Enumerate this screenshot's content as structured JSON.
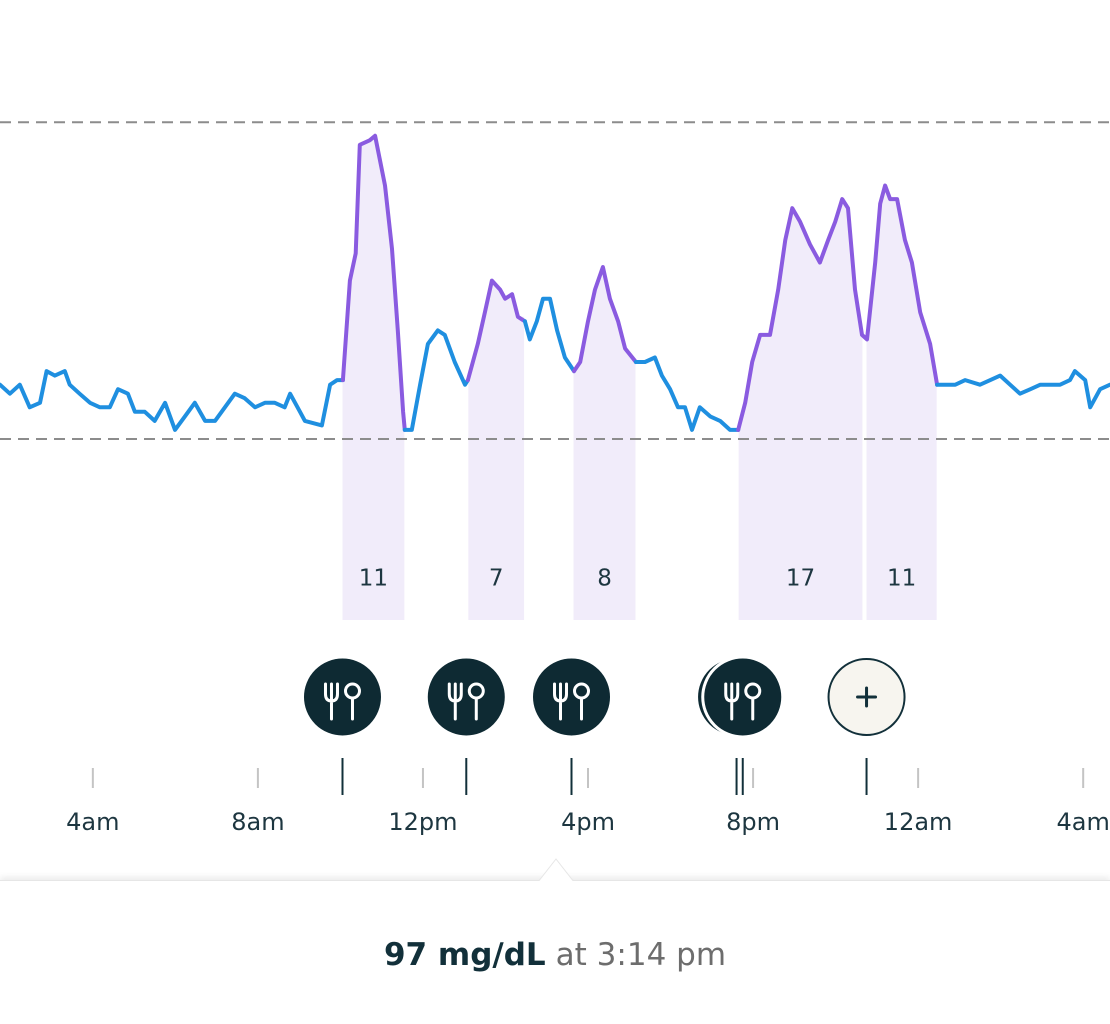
{
  "chart_data": {
    "type": "line",
    "x": [
      1.75,
      1.99,
      2.23,
      2.47,
      2.72,
      2.88,
      3.08,
      3.32,
      3.44,
      3.68,
      3.93,
      4.17,
      4.41,
      4.61,
      4.85,
      5.02,
      5.26,
      5.5,
      5.75,
      5.99,
      6.23,
      6.47,
      6.72,
      6.96,
      7.2,
      7.44,
      7.68,
      7.93,
      8.17,
      8.41,
      8.65,
      8.78,
      9.02,
      9.14,
      9.55,
      9.75,
      9.92,
      10.06,
      10.23,
      10.37,
      10.47,
      10.71,
      10.84,
      11.08,
      11.25,
      11.39,
      11.52,
      11.56,
      11.73,
      11.93,
      12.12,
      12.36,
      12.53,
      12.77,
      13.02,
      13.09,
      13.33,
      13.5,
      13.67,
      13.87,
      13.99,
      14.16,
      14.3,
      14.47,
      14.59,
      14.76,
      14.91,
      15.08,
      15.25,
      15.44,
      15.66,
      15.81,
      16.0,
      16.17,
      16.36,
      16.53,
      16.73,
      16.9,
      17.16,
      17.38,
      17.62,
      17.79,
      17.99,
      18.18,
      18.35,
      18.52,
      18.71,
      18.96,
      19.2,
      19.44,
      19.64,
      19.81,
      19.98,
      20.17,
      20.41,
      20.61,
      20.78,
      20.95,
      21.14,
      21.38,
      21.62,
      21.82,
      21.99,
      22.16,
      22.3,
      22.47,
      22.64,
      22.76,
      22.96,
      23.08,
      23.2,
      23.32,
      23.49,
      23.68,
      23.85,
      24.05,
      24.29,
      24.46,
      24.65,
      24.9,
      25.14,
      25.5,
      25.75,
      25.99,
      26.23,
      26.47,
      26.72,
      26.96,
      27.2,
      27.44,
      27.68,
      27.8,
      28.05,
      28.17,
      28.41,
      28.65
    ],
    "values": [
      82,
      80,
      82,
      77,
      78,
      85,
      84,
      85,
      82,
      80,
      78,
      77,
      77,
      81,
      80,
      76,
      76,
      74,
      78,
      72,
      75,
      78,
      74,
      74,
      77,
      80,
      79,
      77,
      78,
      78,
      77,
      80,
      76,
      74,
      73,
      82,
      83,
      83,
      105,
      111,
      135,
      136,
      137,
      126,
      112,
      94,
      76,
      72,
      72,
      82,
      91,
      94,
      93,
      87,
      82,
      83,
      91,
      98,
      105,
      103,
      101,
      102,
      97,
      96,
      92,
      96,
      101,
      101,
      94,
      88,
      85,
      87,
      96,
      103,
      108,
      101,
      96,
      90,
      87,
      87,
      88,
      84,
      81,
      77,
      77,
      72,
      77,
      75,
      74,
      72,
      72,
      78,
      87,
      93,
      93,
      103,
      114,
      121,
      118,
      113,
      109,
      114,
      118,
      123,
      121,
      103,
      93,
      92,
      109,
      122,
      126,
      123,
      123,
      114,
      109,
      98,
      91,
      82,
      82,
      82,
      83,
      82,
      83,
      84,
      82,
      80,
      81,
      82,
      82,
      82,
      83,
      85,
      83,
      77,
      81,
      82
    ],
    "color": "#1f8fe0",
    "highlight_color": "#8a5be0",
    "xlim": [
      1.75,
      28.65
    ],
    "ylim": [
      30,
      167
    ],
    "xticks": [
      {
        "value": 4,
        "label": "4am"
      },
      {
        "value": 8,
        "label": "8am"
      },
      {
        "value": 12,
        "label": "12pm"
      },
      {
        "value": 16,
        "label": "4pm"
      },
      {
        "value": 20,
        "label": "8pm"
      },
      {
        "value": 24,
        "label": "12am"
      },
      {
        "value": 28,
        "label": "4am"
      }
    ],
    "reference_lines": [
      70,
      140
    ],
    "zones": [
      {
        "start": 10.05,
        "end": 11.55,
        "score": 11
      },
      {
        "start": 13.1,
        "end": 14.45,
        "score": 7
      },
      {
        "start": 15.65,
        "end": 17.15,
        "score": 8
      },
      {
        "start": 19.65,
        "end": 22.65,
        "score": 17
      },
      {
        "start": 22.75,
        "end": 24.45,
        "score": 11
      }
    ],
    "zone_fill": "#f1ecfa",
    "meal_times": [
      10.05,
      13.05,
      15.6,
      19.6,
      19.75
    ],
    "add_button_time": 22.75
  },
  "footer": {
    "reading": "97 mg/dL",
    "time": "at 3:14 pm"
  }
}
